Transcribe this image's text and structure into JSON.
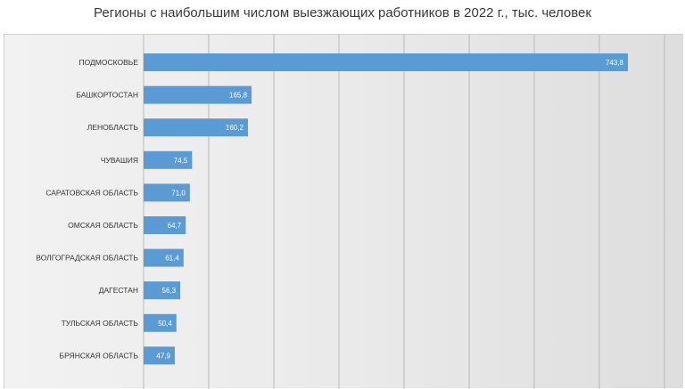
{
  "chart_data": {
    "type": "bar",
    "orientation": "horizontal",
    "title": "Регионы с наибольшим числом выезжающих работников в 2022 г., тыс. человек",
    "categories": [
      "ПОДМОСКОВЬЕ",
      "БАШКОРТОСТАН",
      "ЛЕНОБЛАСТЬ",
      "ЧУВАШИЯ",
      "САРАТОВСКАЯ ОБЛАСТЬ",
      "ОМСКАЯ ОБЛАСТЬ",
      "ВОЛГОГРАДСКАЯ ОБЛАСТЬ",
      "ДАГЕСТАН",
      "ТУЛЬСКАЯ ОБЛАСТЬ",
      "БРЯНСКАЯ ОБЛАСТЬ"
    ],
    "values": [
      743.8,
      165.8,
      160.2,
      74.5,
      71.0,
      64.7,
      61.4,
      56.3,
      50.4,
      47.9
    ],
    "value_labels": [
      "743,8",
      "165,8",
      "160,2",
      "74,5",
      "71,0",
      "64,7",
      "61,4",
      "56,3",
      "50,4",
      "47,9"
    ],
    "xlim": [
      0,
      800
    ],
    "grid": "vertical",
    "colors": {
      "bar": "#5b9bd5",
      "grid": "#b9b9b9"
    }
  }
}
